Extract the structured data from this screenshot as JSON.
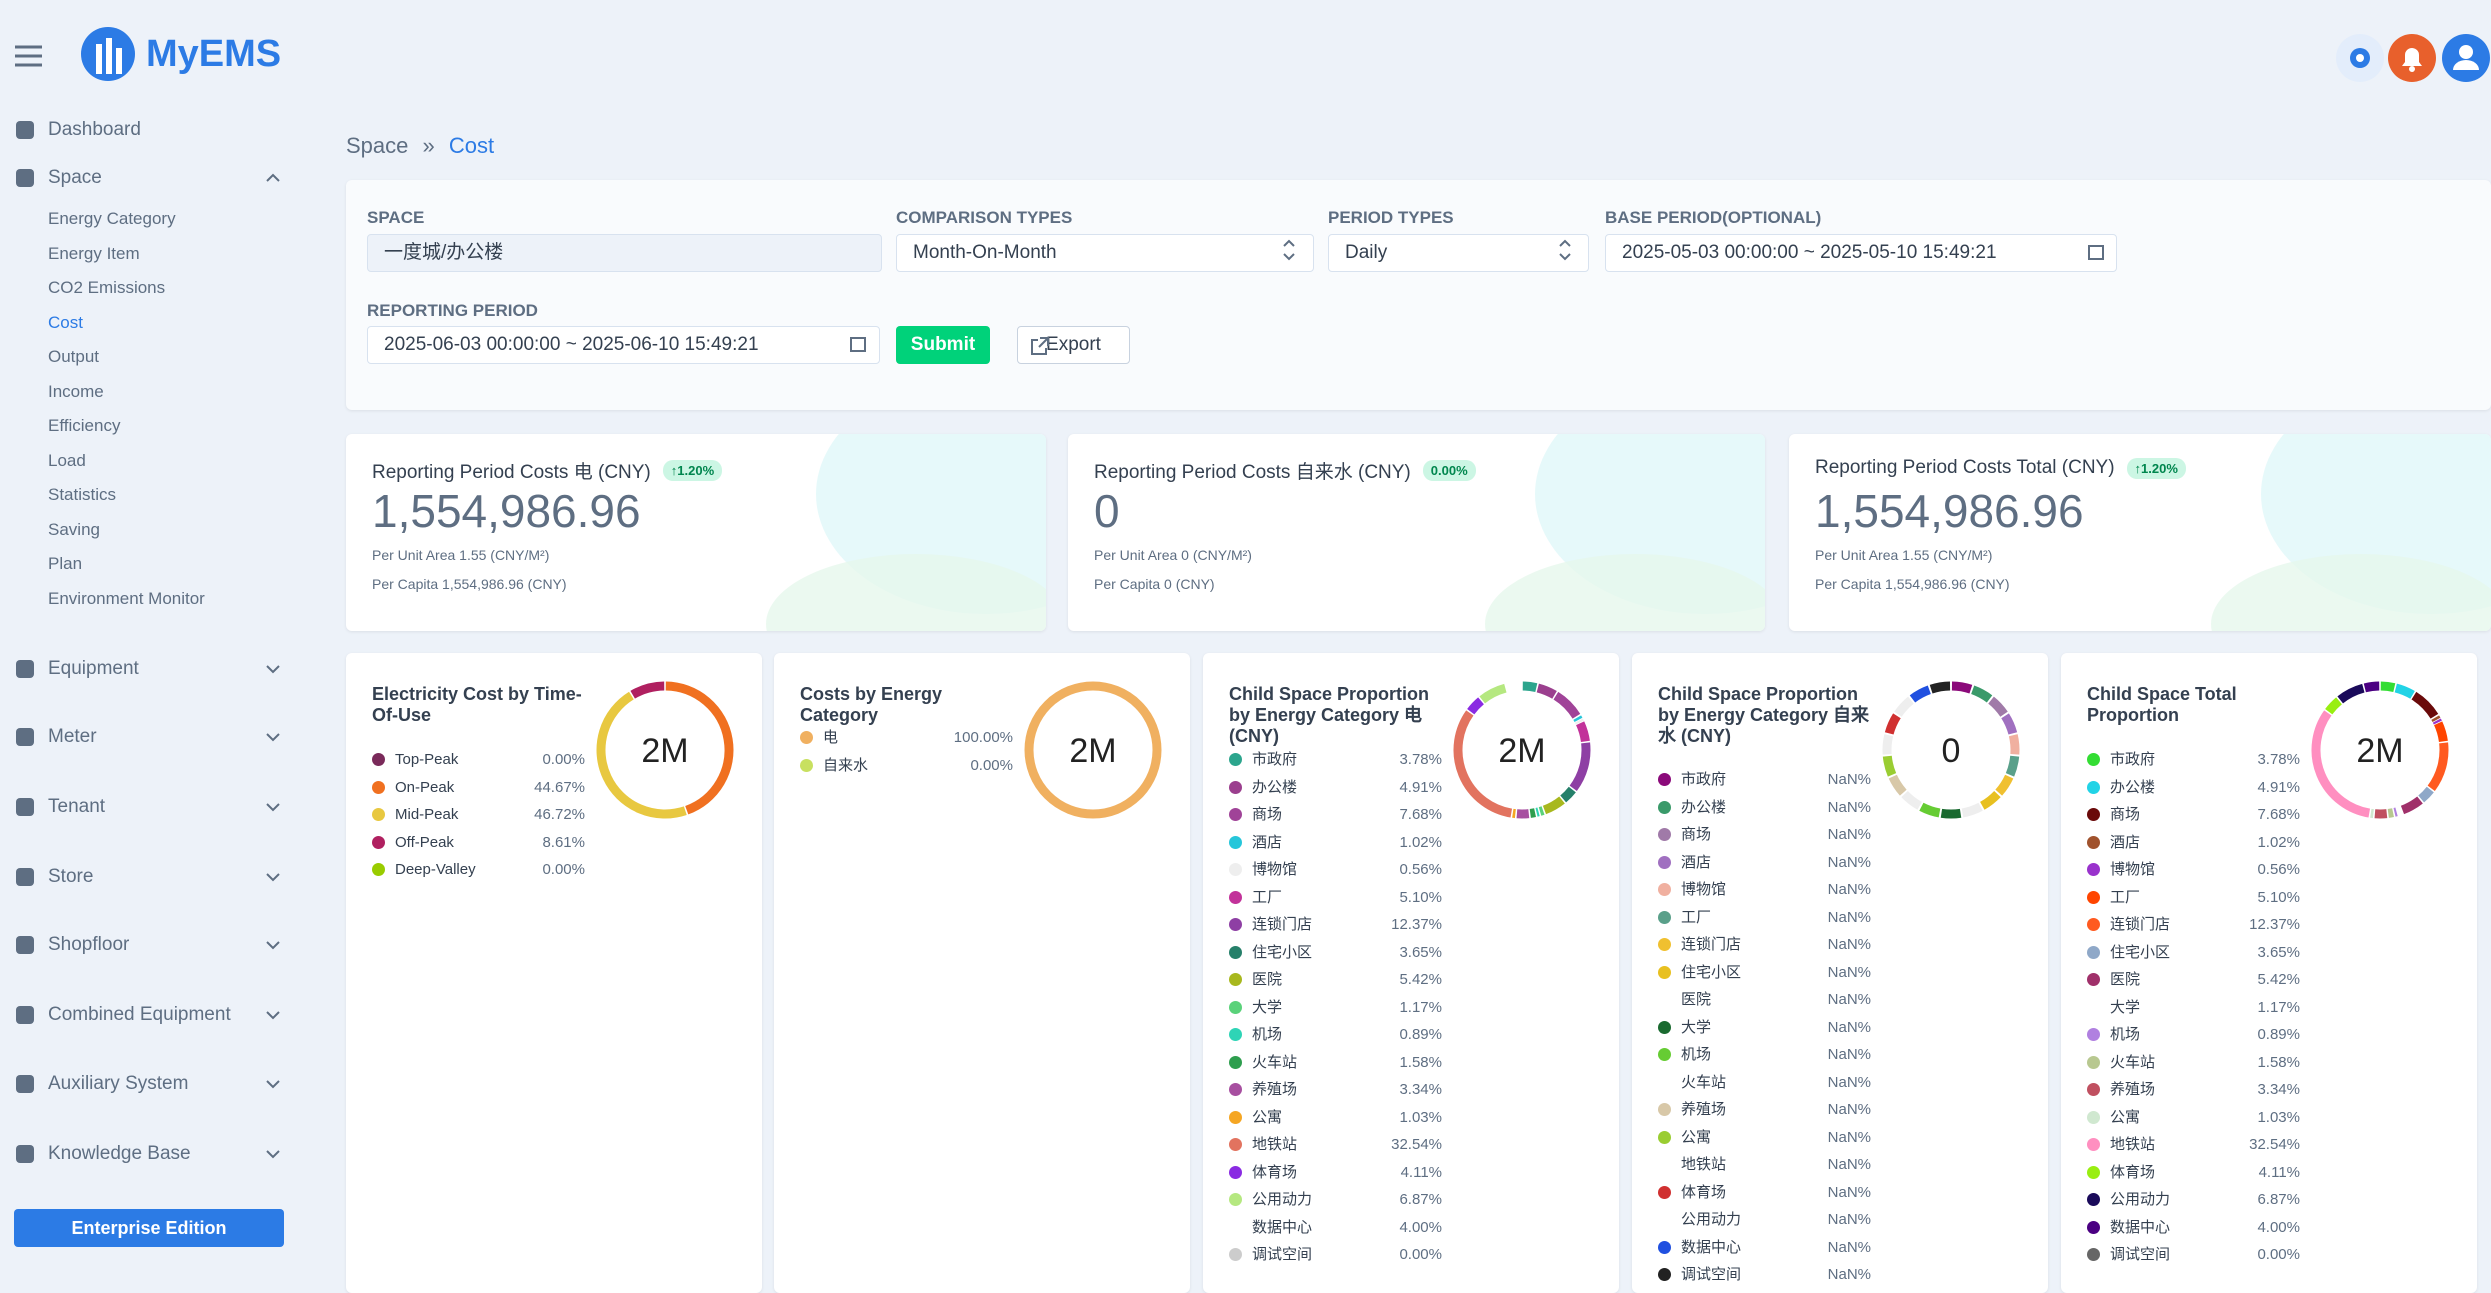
{
  "header": {
    "brand": "MyEMS"
  },
  "sidebar": {
    "items": [
      {
        "label": "Dashboard"
      },
      {
        "label": "Space",
        "children": [
          "Energy Category",
          "Energy Item",
          "CO2 Emissions",
          "Cost",
          "Output",
          "Income",
          "Efficiency",
          "Load",
          "Statistics",
          "Saving",
          "Plan",
          "Environment Monitor"
        ]
      },
      {
        "label": "Equipment"
      },
      {
        "label": "Meter"
      },
      {
        "label": "Tenant"
      },
      {
        "label": "Store"
      },
      {
        "label": "Shopfloor"
      },
      {
        "label": "Combined Equipment"
      },
      {
        "label": "Auxiliary System"
      },
      {
        "label": "Knowledge Base"
      }
    ],
    "button": "Enterprise Edition"
  },
  "breadcrumb": {
    "parent": "Space",
    "separator": "»",
    "current": "Cost"
  },
  "filters": {
    "space": {
      "label": "SPACE",
      "value": "一度城/办公楼"
    },
    "comparison": {
      "label": "COMPARISON TYPES",
      "value": "Month-On-Month"
    },
    "period": {
      "label": "PERIOD TYPES",
      "value": "Daily"
    },
    "base_period": {
      "label": "BASE PERIOD(OPTIONAL)",
      "value": "2025-05-03 00:00:00 ~ 2025-05-10 15:49:21"
    },
    "reporting_period": {
      "label": "REPORTING PERIOD",
      "value": "2025-06-03 00:00:00 ~ 2025-06-10 15:49:21"
    },
    "submit": "Submit",
    "export": "Export"
  },
  "summary_cards": [
    {
      "title": "Reporting Period Costs 电 (CNY)",
      "badge": "↑1.20%",
      "value": "1,554,986.96",
      "per_unit_area": "Per Unit Area 1.55 (CNY/M²)",
      "per_capita": "Per Capita 1,554,986.96 (CNY)"
    },
    {
      "title": "Reporting Period Costs 自来水 (CNY)",
      "badge": "0.00%",
      "value": "0",
      "per_unit_area": "Per Unit Area 0 (CNY/M²)",
      "per_capita": "Per Capita 0 (CNY)"
    },
    {
      "title": "Reporting Period Costs Total (CNY)",
      "badge": "↑1.20%",
      "value": "1,554,986.96",
      "per_unit_area": "Per Unit Area 1.55 (CNY/M²)",
      "per_capita": "Per Capita 1,554,986.96 (CNY)"
    }
  ],
  "donut_cards": [
    {
      "title": "Electricity Cost by Time-Of-Use",
      "center": "2M",
      "items": [
        {
          "name": "Top-Peak",
          "value": 0,
          "label": "0.00%",
          "color": "#7a2a5a"
        },
        {
          "name": "On-Peak",
          "value": 44.67,
          "label": "44.67%",
          "color": "#f07020"
        },
        {
          "name": "Mid-Peak",
          "value": 46.72,
          "label": "46.72%",
          "color": "#e8c840"
        },
        {
          "name": "Off-Peak",
          "value": 8.61,
          "label": "8.61%",
          "color": "#b02060"
        },
        {
          "name": "Deep-Valley",
          "value": 0,
          "label": "0.00%",
          "color": "#99cc00"
        }
      ]
    },
    {
      "title": "Costs by Energy Category",
      "center": "2M",
      "items": [
        {
          "name": "电",
          "value": 100,
          "label": "100.00%",
          "color": "#f0b060"
        },
        {
          "name": "自来水",
          "value": 0,
          "label": "0.00%",
          "color": "#c8e060"
        }
      ]
    },
    {
      "title": "Child Space Proportion by Energy Category 电 (CNY)",
      "center": "2M",
      "items": [
        {
          "name": "市政府",
          "value": 3.78,
          "label": "3.78%",
          "color": "#2ca58d"
        },
        {
          "name": "办公楼",
          "value": 4.91,
          "label": "4.91%",
          "color": "#9b3f8e"
        },
        {
          "name": "商场",
          "value": 7.68,
          "label": "7.68%",
          "color": "#a04398"
        },
        {
          "name": "酒店",
          "value": 1.02,
          "label": "1.02%",
          "color": "#26c6da"
        },
        {
          "name": "博物馆",
          "value": 0.56,
          "label": "0.56%",
          "color": "#eeeeee"
        },
        {
          "name": "工厂",
          "value": 5.1,
          "label": "5.10%",
          "color": "#c2329a"
        },
        {
          "name": "连锁门店",
          "value": 12.37,
          "label": "12.37%",
          "color": "#8e3fa4"
        },
        {
          "name": "住宅小区",
          "value": 3.65,
          "label": "3.65%",
          "color": "#26806a"
        },
        {
          "name": "医院",
          "value": 5.42,
          "label": "5.42%",
          "color": "#a8b81e"
        },
        {
          "name": "大学",
          "value": 1.17,
          "label": "1.17%",
          "color": "#5ad27a"
        },
        {
          "name": "机场",
          "value": 0.89,
          "label": "0.89%",
          "color": "#2ed4b6"
        },
        {
          "name": "火车站",
          "value": 1.58,
          "label": "1.58%",
          "color": "#2e9e4e"
        },
        {
          "name": "养殖场",
          "value": 3.34,
          "label": "3.34%",
          "color": "#a74fa0"
        },
        {
          "name": "公寓",
          "value": 1.03,
          "label": "1.03%",
          "color": "#f5a623"
        },
        {
          "name": "地铁站",
          "value": 32.54,
          "label": "32.54%",
          "color": "#e2735f"
        },
        {
          "name": "体育场",
          "value": 4.11,
          "label": "4.11%",
          "color": "#8a2be2"
        },
        {
          "name": "公用动力",
          "value": 6.87,
          "label": "6.87%",
          "color": "#b5e880"
        },
        {
          "name": "数据中心",
          "value": 4.0,
          "label": "4.00%",
          "color": "#ffffff"
        },
        {
          "name": "调试空间",
          "value": 0,
          "label": "0.00%",
          "color": "#cccccc"
        }
      ]
    },
    {
      "title": "Child Space Proportion by Energy Category 自来水 (CNY)",
      "center": "0",
      "items": [
        {
          "name": "市政府",
          "value": null,
          "label": "NaN%",
          "color": "#8b0a7a"
        },
        {
          "name": "办公楼",
          "value": null,
          "label": "NaN%",
          "color": "#3a9a6a"
        },
        {
          "name": "商场",
          "value": null,
          "label": "NaN%",
          "color": "#a07aa8"
        },
        {
          "name": "酒店",
          "value": null,
          "label": "NaN%",
          "color": "#a070c0"
        },
        {
          "name": "博物馆",
          "value": null,
          "label": "NaN%",
          "color": "#f0b0a0"
        },
        {
          "name": "工厂",
          "value": null,
          "label": "NaN%",
          "color": "#5aa08a"
        },
        {
          "name": "连锁门店",
          "value": null,
          "label": "NaN%",
          "color": "#f0c030"
        },
        {
          "name": "住宅小区",
          "value": null,
          "label": "NaN%",
          "color": "#e8c020"
        },
        {
          "name": "医院",
          "value": null,
          "label": "NaN%",
          "color": "#ffffff"
        },
        {
          "name": "大学",
          "value": null,
          "label": "NaN%",
          "color": "#1a6a30"
        },
        {
          "name": "机场",
          "value": null,
          "label": "NaN%",
          "color": "#66cc33"
        },
        {
          "name": "火车站",
          "value": null,
          "label": "NaN%",
          "color": "#ffffff"
        },
        {
          "name": "养殖场",
          "value": null,
          "label": "NaN%",
          "color": "#d8c8a8"
        },
        {
          "name": "公寓",
          "value": null,
          "label": "NaN%",
          "color": "#9acd32"
        },
        {
          "name": "地铁站",
          "value": null,
          "label": "NaN%",
          "color": "#ffffff"
        },
        {
          "name": "体育场",
          "value": null,
          "label": "NaN%",
          "color": "#d03030"
        },
        {
          "name": "公用动力",
          "value": null,
          "label": "NaN%",
          "color": "#ffffff"
        },
        {
          "name": "数据中心",
          "value": null,
          "label": "NaN%",
          "color": "#2050e0"
        },
        {
          "name": "调试空间",
          "value": null,
          "label": "NaN%",
          "color": "#222222"
        }
      ]
    },
    {
      "title": "Child Space Total Proportion",
      "center": "2M",
      "items": [
        {
          "name": "市政府",
          "value": 3.78,
          "label": "3.78%",
          "color": "#33dd33"
        },
        {
          "name": "办公楼",
          "value": 4.91,
          "label": "4.91%",
          "color": "#22d3e6"
        },
        {
          "name": "商场",
          "value": 7.68,
          "label": "7.68%",
          "color": "#6a0a0a"
        },
        {
          "name": "酒店",
          "value": 1.02,
          "label": "1.02%",
          "color": "#a0522d"
        },
        {
          "name": "博物馆",
          "value": 0.56,
          "label": "0.56%",
          "color": "#9932cc"
        },
        {
          "name": "工厂",
          "value": 5.1,
          "label": "5.10%",
          "color": "#ff4500"
        },
        {
          "name": "连锁门店",
          "value": 12.37,
          "label": "12.37%",
          "color": "#ff5a20"
        },
        {
          "name": "住宅小区",
          "value": 3.65,
          "label": "3.65%",
          "color": "#8fa8c8"
        },
        {
          "name": "医院",
          "value": 5.42,
          "label": "5.42%",
          "color": "#a0306a"
        },
        {
          "name": "大学",
          "value": 1.17,
          "label": "1.17%",
          "color": "#ffffff"
        },
        {
          "name": "机场",
          "value": 0.89,
          "label": "0.89%",
          "color": "#b080e0"
        },
        {
          "name": "火车站",
          "value": 1.58,
          "label": "1.58%",
          "color": "#b8c890"
        },
        {
          "name": "养殖场",
          "value": 3.34,
          "label": "3.34%",
          "color": "#c05060"
        },
        {
          "name": "公寓",
          "value": 1.03,
          "label": "1.03%",
          "color": "#d0e8d0"
        },
        {
          "name": "地铁站",
          "value": 32.54,
          "label": "32.54%",
          "color": "#ff8fc0"
        },
        {
          "name": "体育场",
          "value": 4.11,
          "label": "4.11%",
          "color": "#99ee11"
        },
        {
          "name": "公用动力",
          "value": 6.87,
          "label": "6.87%",
          "color": "#1a0a5a"
        },
        {
          "name": "数据中心",
          "value": 4.0,
          "label": "4.00%",
          "color": "#4b0082"
        },
        {
          "name": "调试空间",
          "value": 0,
          "label": "0.00%",
          "color": "#666666"
        }
      ]
    }
  ]
}
